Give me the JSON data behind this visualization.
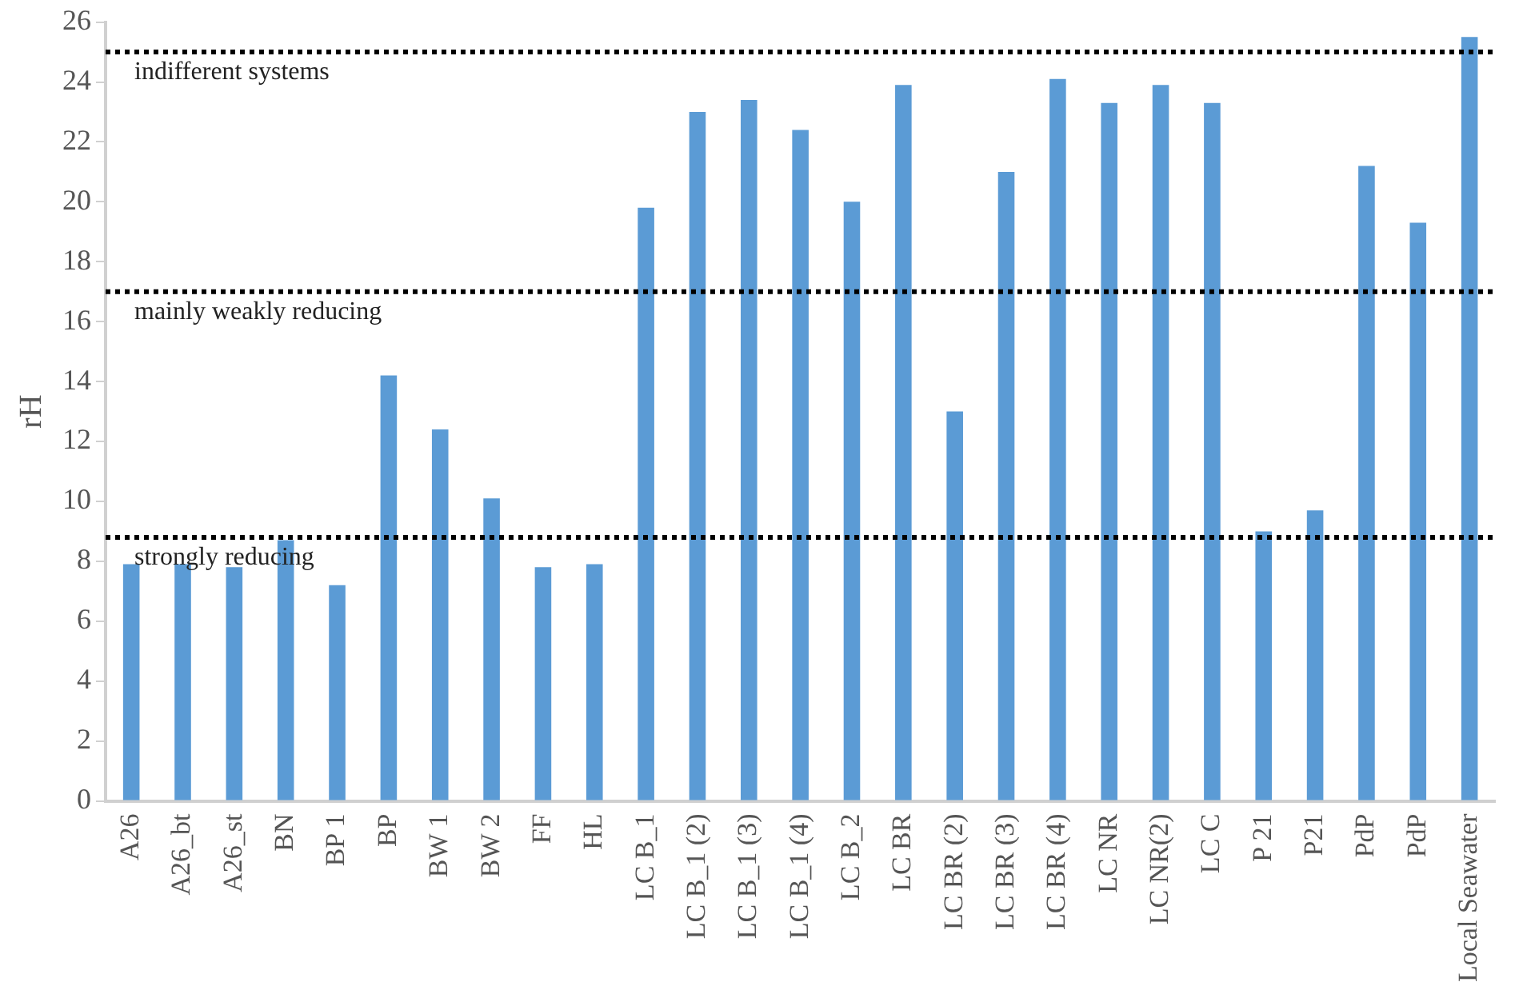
{
  "chart_data": {
    "type": "bar",
    "ylabel": "rH",
    "categories": [
      "A26",
      "A26_bt",
      "A26_st",
      "BN",
      "BP 1",
      "BP",
      "BW 1",
      "BW 2",
      "FF",
      "HL",
      "LC B_1",
      "LC B_1 (2)",
      "LC B_1 (3)",
      "LC B_1 (4)",
      "LC B_2",
      "LC BR",
      "LC BR (2)",
      "LC BR (3)",
      "LC BR (4)",
      "LC NR",
      "LC NR(2)",
      "LC C",
      "P 21",
      "P21",
      "PdP",
      "PdP",
      "Local Seawater"
    ],
    "values": [
      7.9,
      7.9,
      7.8,
      8.7,
      7.2,
      14.2,
      12.4,
      10.1,
      7.8,
      7.9,
      19.8,
      23.0,
      23.4,
      22.4,
      20.0,
      23.9,
      13.0,
      21.0,
      24.1,
      23.3,
      23.9,
      23.3,
      9.0,
      9.7,
      21.2,
      19.3,
      25.5
    ],
    "color": "#5b9bd5",
    "ylim": [
      0,
      26
    ],
    "yticks": [
      0,
      2,
      4,
      6,
      8,
      10,
      12,
      14,
      16,
      18,
      20,
      22,
      24,
      26
    ],
    "grid": false,
    "legend": false,
    "ref_lines": [
      {
        "axis": "y",
        "value": 25,
        "label": "indifferent systems",
        "color": "#000000",
        "line_style": "dotted"
      },
      {
        "axis": "y",
        "value": 17,
        "label": "mainly weakly reducing",
        "color": "#000000",
        "line_style": "dotted"
      },
      {
        "axis": "y",
        "value": 8.8,
        "label": "strongly reducing",
        "color": "#000000",
        "line_style": "dotted"
      }
    ]
  }
}
